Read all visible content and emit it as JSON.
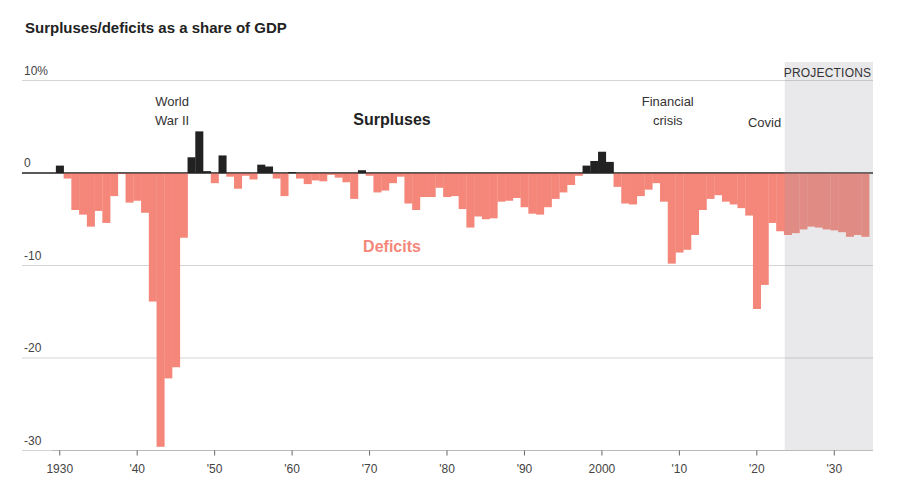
{
  "chart_data": {
    "type": "bar",
    "title": "Surpluses/deficits as a share of GDP",
    "x": [
      1930,
      1931,
      1932,
      1933,
      1934,
      1935,
      1936,
      1937,
      1938,
      1939,
      1940,
      1941,
      1942,
      1943,
      1944,
      1945,
      1946,
      1947,
      1948,
      1949,
      1950,
      1951,
      1952,
      1953,
      1954,
      1955,
      1956,
      1957,
      1958,
      1959,
      1960,
      1961,
      1962,
      1963,
      1964,
      1965,
      1966,
      1967,
      1968,
      1969,
      1970,
      1971,
      1972,
      1973,
      1974,
      1975,
      1976,
      1977,
      1978,
      1979,
      1980,
      1981,
      1982,
      1983,
      1984,
      1985,
      1986,
      1987,
      1988,
      1989,
      1990,
      1991,
      1992,
      1993,
      1994,
      1995,
      1996,
      1997,
      1998,
      1999,
      2000,
      2001,
      2002,
      2003,
      2004,
      2005,
      2006,
      2007,
      2008,
      2009,
      2010,
      2011,
      2012,
      2013,
      2014,
      2015,
      2016,
      2017,
      2018,
      2019,
      2020,
      2021,
      2022,
      2023,
      2024,
      2025,
      2026,
      2027,
      2028,
      2029,
      2030,
      2031,
      2032,
      2033,
      2034
    ],
    "series": [
      {
        "name": "Surpluses",
        "color": "#222222",
        "values": [
          0.8,
          null,
          null,
          null,
          null,
          null,
          null,
          null,
          null,
          null,
          null,
          null,
          null,
          null,
          null,
          null,
          null,
          1.7,
          4.5,
          0.2,
          null,
          1.9,
          null,
          null,
          null,
          null,
          0.9,
          0.7,
          null,
          null,
          0.1,
          null,
          null,
          null,
          null,
          null,
          null,
          null,
          null,
          0.3,
          null,
          null,
          null,
          null,
          null,
          null,
          null,
          null,
          null,
          null,
          null,
          null,
          null,
          null,
          null,
          null,
          null,
          null,
          null,
          null,
          null,
          null,
          null,
          null,
          null,
          null,
          null,
          null,
          0.8,
          1.3,
          2.3,
          1.2,
          null,
          null,
          null,
          null,
          null,
          null,
          null,
          null,
          null,
          null,
          null,
          null,
          null,
          null,
          null,
          null,
          null,
          null,
          null,
          null,
          null,
          null,
          null,
          null,
          null,
          null,
          null,
          null,
          null,
          null,
          null,
          null,
          null
        ]
      },
      {
        "name": "Deficits",
        "color": "#f4877a",
        "values": [
          null,
          -0.6,
          -4.0,
          -4.5,
          -5.8,
          -4.1,
          -5.4,
          -2.5,
          -0.1,
          -3.2,
          -3.0,
          -4.3,
          -13.9,
          -29.6,
          -22.2,
          -21.0,
          -7.0,
          null,
          null,
          null,
          -1.1,
          null,
          -0.4,
          -1.7,
          -0.3,
          -0.7,
          null,
          null,
          -0.6,
          -2.5,
          null,
          -0.6,
          -1.2,
          -0.8,
          -0.9,
          -0.2,
          -0.5,
          -1.0,
          -2.8,
          null,
          -0.3,
          -2.1,
          -1.9,
          -1.1,
          -0.4,
          -3.3,
          -4.0,
          -2.6,
          -2.6,
          -1.6,
          -2.6,
          -2.5,
          -3.9,
          -5.9,
          -4.7,
          -5.0,
          -4.9,
          -3.1,
          -3.0,
          -2.7,
          -3.7,
          -4.4,
          -4.5,
          -3.7,
          -2.8,
          -2.1,
          -1.3,
          -0.3,
          null,
          null,
          null,
          null,
          -1.5,
          -3.3,
          -3.4,
          -2.5,
          -1.8,
          -1.1,
          -3.1,
          -9.8,
          -8.6,
          -8.3,
          -6.7,
          -4.0,
          -2.8,
          -2.4,
          -3.1,
          -3.4,
          -3.8,
          -4.6,
          -14.7,
          -12.1,
          -5.4,
          -6.3,
          -6.7,
          -6.5,
          -6.1,
          -5.8,
          -5.9,
          -6.1,
          -6.2,
          -6.4,
          -6.9,
          -6.7,
          -6.9
        ]
      }
    ],
    "xlim": [
      1929,
      2035
    ],
    "xticks": [
      1930,
      {
        "value": 1940,
        "label": "'40"
      },
      {
        "value": 1950,
        "label": "'50"
      },
      {
        "value": 1960,
        "label": "'60"
      },
      {
        "value": 1970,
        "label": "'70"
      },
      {
        "value": 1980,
        "label": "'80"
      },
      {
        "value": 1990,
        "label": "'90"
      },
      2000,
      {
        "value": 2010,
        "label": "'10"
      },
      {
        "value": 2020,
        "label": "'20"
      },
      {
        "value": 2030,
        "label": "'30"
      }
    ],
    "ylim": [
      -30,
      10
    ],
    "yticks": [
      {
        "value": 10,
        "label": "10%"
      },
      0,
      -10,
      -20,
      -30
    ],
    "grid": true,
    "annotations": [
      {
        "text": [
          "World",
          "War II"
        ],
        "x": 1944.5
      },
      {
        "text": [
          "Financial",
          "crisis"
        ],
        "x": 2008.5
      },
      {
        "text": [
          "Covid"
        ],
        "x": 2021
      }
    ],
    "projection": {
      "label": "PROJECTIONS",
      "xlim": [
        2023.6,
        2035
      ]
    }
  }
}
